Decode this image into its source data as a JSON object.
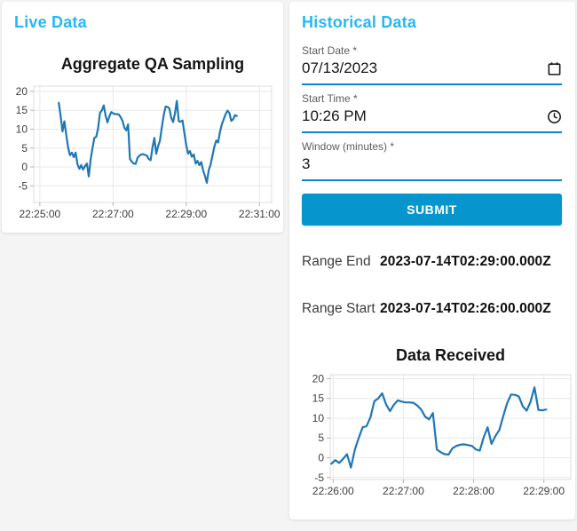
{
  "colors": {
    "accent": "#29b6f6",
    "button": "#0795ce",
    "underline": "#0d82d8",
    "line": "#1f77b4",
    "grid": "#e8e8e8",
    "axis_frame": "#dcdcdc",
    "tick_text": "#3d3d3d"
  },
  "live_panel": {
    "title": "Live Data"
  },
  "historical": {
    "title": "Historical Data",
    "fields": [
      {
        "label": "Start Date *",
        "value": "07/13/2023",
        "icon": "calendar-icon"
      },
      {
        "label": "Start Time *",
        "value": "10:26 PM",
        "icon": "clock-icon"
      },
      {
        "label": "Window (minutes) *",
        "value": "3"
      }
    ],
    "submit_label": "SUBMIT",
    "range_end": {
      "label": "Range End",
      "value": "2023-07-14T02:29:00.000Z"
    },
    "range_start": {
      "label": "Range Start",
      "value": "2023-07-14T02:26:00.000Z"
    }
  },
  "chart_data": [
    {
      "type": "line",
      "title": "Aggregate QA Sampling",
      "xlabel": "",
      "ylabel": "",
      "x_axis": "time of day (HH:MM:SS)",
      "x_base": "22:25:00",
      "grid": true,
      "legend": false,
      "ylim": [
        -9.4,
        21.4
      ],
      "yticks": [
        -5,
        0,
        5,
        10,
        15,
        20
      ],
      "xlim_seconds": [
        -10,
        380
      ],
      "xticks": [
        {
          "t": 0,
          "label": "22:25:00"
        },
        {
          "t": 120,
          "label": "22:27:00"
        },
        {
          "t": 240,
          "label": "22:29:00"
        },
        {
          "t": 360,
          "label": "22:31:00"
        }
      ],
      "series": [
        {
          "name": "Aggregate QA Sampling",
          "t_start": 31,
          "t_end": 323,
          "values": [
            17,
            13.5,
            9.4,
            12.1,
            8.6,
            5.2,
            3.1,
            3.8,
            2.6,
            3.8,
            0.7,
            -0.5,
            0.5,
            -0.7,
            0.2,
            0.9,
            -2.5,
            2,
            5,
            7.7,
            8,
            10.2,
            14.3,
            15,
            16.3,
            13.5,
            11.8,
            13.4,
            14.5,
            14.2,
            14,
            14,
            13.9,
            13.2,
            12.2,
            10.4,
            9.7,
            11.3,
            2.1,
            1.4,
            0.9,
            0.8,
            2.4,
            3,
            3.3,
            3.4,
            3.2,
            3,
            2.1,
            1.8,
            5.2,
            7.7,
            3.5,
            5.5,
            7,
            10.5,
            13.8,
            16,
            15.9,
            15.5,
            13,
            11.9,
            14.2,
            17.5,
            12.1,
            12,
            12.3,
            9,
            5.8,
            3.5,
            4.2,
            2.7,
            3.3,
            0.9,
            1.6,
            0.5,
            1.3,
            -0.9,
            -2.4,
            -4.2,
            -0.9,
            0.7,
            3.1,
            5.4,
            7,
            6.5,
            9.3,
            11.3,
            12.6,
            14,
            14.9,
            14.3,
            12.2,
            12.6,
            13.7,
            13.5
          ]
        }
      ]
    },
    {
      "type": "line",
      "title": "Data Received",
      "xlabel": "",
      "ylabel": "",
      "x_axis": "time of day (HH:MM:SS)",
      "x_base": "22:26:00",
      "grid": true,
      "legend": false,
      "ylim": [
        -5.5,
        21
      ],
      "yticks": [
        -5,
        0,
        5,
        10,
        15,
        20
      ],
      "xlim_seconds": [
        -2.5,
        203
      ],
      "xticks": [
        {
          "t": 0,
          "label": "22:26:00"
        },
        {
          "t": 60,
          "label": "22:27:00"
        },
        {
          "t": 120,
          "label": "22:28:00"
        },
        {
          "t": 180,
          "label": "22:29:00"
        }
      ],
      "series": [
        {
          "name": "Data Received",
          "t_start": -1.5,
          "t_end": 182,
          "values": [
            -1.5,
            -0.6,
            -1.3,
            -0.3,
            0.9,
            -2.5,
            2,
            5,
            7.7,
            8,
            10.2,
            14.3,
            15,
            16.3,
            13.5,
            11.8,
            13.4,
            14.5,
            14.2,
            14,
            14,
            13.9,
            13.2,
            12.2,
            10.4,
            9.7,
            11.3,
            2.1,
            1.4,
            0.9,
            0.8,
            2.4,
            3,
            3.3,
            3.4,
            3.2,
            3,
            2.1,
            1.8,
            5.2,
            7.7,
            3.5,
            5.5,
            7,
            10.5,
            13.8,
            16,
            15.9,
            15.5,
            13,
            11.9,
            14.2,
            17.8,
            12.1,
            12,
            12.2
          ]
        }
      ]
    }
  ]
}
